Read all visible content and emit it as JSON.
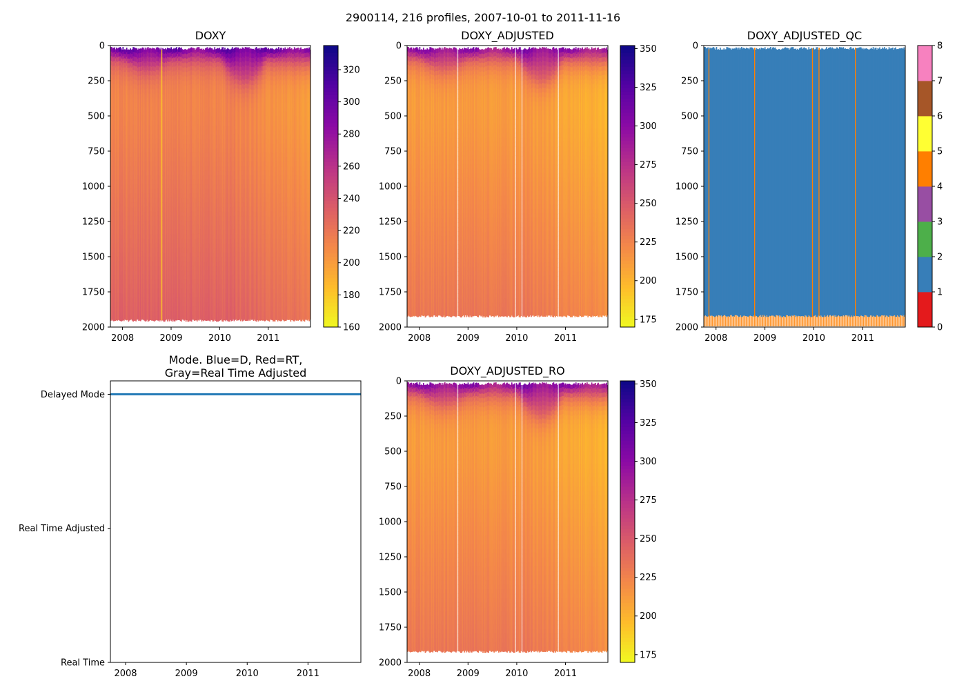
{
  "figure": {
    "title": "2900114, 216 profiles, 2007-10-01 to 2011-11-16"
  },
  "chart_data": [
    {
      "id": "doxy",
      "type": "heatmap",
      "title": "DOXY",
      "x_ticks": [
        "2008",
        "2009",
        "2010",
        "2011"
      ],
      "x_tick_years": [
        2008,
        2009,
        2010,
        2011
      ],
      "xlim": [
        2007.75,
        2011.87
      ],
      "ylim": [
        2000,
        0
      ],
      "y_ticks": [
        0,
        250,
        500,
        750,
        1000,
        1250,
        1500,
        1750,
        2000
      ],
      "y_tick_labels": [
        "0",
        "250",
        "500",
        "750",
        "1000",
        "1250",
        "1500",
        "1750",
        "2000"
      ],
      "colormap": "plasma_r",
      "clim": [
        160,
        335
      ],
      "colorbar_ticks": [
        160,
        180,
        200,
        220,
        240,
        260,
        280,
        300,
        320
      ],
      "colorbar_labels": [
        "160",
        "180",
        "200",
        "220",
        "240",
        "260",
        "280",
        "300",
        "320"
      ],
      "max_depth": 1960,
      "white_gaps": [],
      "anomaly_stripes": [
        2008.8
      ]
    },
    {
      "id": "doxy_adjusted",
      "type": "heatmap",
      "title": "DOXY_ADJUSTED",
      "x_ticks": [
        "2008",
        "2009",
        "2010",
        "2011"
      ],
      "x_tick_years": [
        2008,
        2009,
        2010,
        2011
      ],
      "xlim": [
        2007.75,
        2011.87
      ],
      "ylim": [
        2000,
        0
      ],
      "y_ticks": [
        0,
        250,
        500,
        750,
        1000,
        1250,
        1500,
        1750,
        2000
      ],
      "y_tick_labels": [
        "0",
        "250",
        "500",
        "750",
        "1000",
        "1250",
        "1500",
        "1750",
        "2000"
      ],
      "colormap": "plasma_r",
      "clim": [
        170,
        352
      ],
      "colorbar_ticks": [
        175,
        200,
        225,
        250,
        275,
        300,
        325,
        350
      ],
      "colorbar_labels": [
        "175",
        "200",
        "225",
        "250",
        "275",
        "300",
        "325",
        "350"
      ],
      "max_depth": 1930,
      "white_gaps": [
        2008.79,
        2009.97,
        2010.1,
        2010.85
      ]
    },
    {
      "id": "doxy_adjusted_qc",
      "type": "heatmap",
      "title": "DOXY_ADJUSTED_QC",
      "x_ticks": [
        "2008",
        "2009",
        "2010",
        "2011"
      ],
      "x_tick_years": [
        2008,
        2009,
        2010,
        2011
      ],
      "xlim": [
        2007.75,
        2011.87
      ],
      "ylim": [
        2000,
        0
      ],
      "y_ticks": [
        0,
        250,
        500,
        750,
        1000,
        1250,
        1500,
        1750,
        2000
      ],
      "y_tick_labels": [
        "0",
        "250",
        "500",
        "750",
        "1000",
        "1250",
        "1500",
        "1750",
        "2000"
      ],
      "colormap": "qc-categorical",
      "clim": [
        0,
        8
      ],
      "qc_categories": [
        {
          "flag": 0,
          "color": "#e41a1c"
        },
        {
          "flag": 1,
          "color": "#377eb8"
        },
        {
          "flag": 2,
          "color": "#4daf4a"
        },
        {
          "flag": 3,
          "color": "#984ea3"
        },
        {
          "flag": 4,
          "color": "#ff7f00"
        },
        {
          "flag": 5,
          "color": "#ffff33"
        },
        {
          "flag": 6,
          "color": "#a65628"
        },
        {
          "flag": 7,
          "color": "#f781bf"
        }
      ],
      "colorbar_ticks": [
        0,
        1,
        2,
        3,
        4,
        5,
        6,
        7,
        8
      ],
      "colorbar_labels": [
        "0",
        "1",
        "2",
        "3",
        "4",
        "5",
        "6",
        "7",
        "8"
      ],
      "dominant_flag": 1,
      "bottom_flag": 4,
      "orange_stripes": [
        2007.85,
        2008.79,
        2009.97,
        2010.1,
        2010.85
      ],
      "max_depth": 1930
    },
    {
      "id": "mode",
      "type": "line",
      "title": "Mode. Blue=D, Red=RT,\nGray=Real Time Adjusted",
      "title_lines": [
        "Mode. Blue=D, Red=RT,",
        "Gray=Real Time Adjusted"
      ],
      "x_ticks": [
        "2008",
        "2009",
        "2010",
        "2011"
      ],
      "x_tick_years": [
        2008,
        2009,
        2010,
        2011
      ],
      "xlim": [
        2007.75,
        2011.87
      ],
      "y_categories": [
        "Delayed Mode",
        "Real Time Adjusted",
        "Real Time"
      ],
      "y_values": [
        2,
        1,
        0
      ],
      "ylim": [
        0,
        2.1
      ],
      "series": [
        {
          "name": "Delayed Mode",
          "color": "#1f77b4",
          "y": 2,
          "x_range": [
            2007.75,
            2011.87
          ]
        }
      ]
    },
    {
      "id": "doxy_adjusted_ro",
      "type": "heatmap",
      "title": "DOXY_ADJUSTED_RO",
      "x_ticks": [
        "2008",
        "2009",
        "2010",
        "2011"
      ],
      "x_tick_years": [
        2008,
        2009,
        2010,
        2011
      ],
      "xlim": [
        2007.75,
        2011.87
      ],
      "ylim": [
        2000,
        0
      ],
      "y_ticks": [
        0,
        250,
        500,
        750,
        1000,
        1250,
        1500,
        1750,
        2000
      ],
      "y_tick_labels": [
        "0",
        "250",
        "500",
        "750",
        "1000",
        "1250",
        "1500",
        "1750",
        "2000"
      ],
      "colormap": "plasma_r",
      "clim": [
        170,
        352
      ],
      "colorbar_ticks": [
        175,
        200,
        225,
        250,
        275,
        300,
        325,
        350
      ],
      "colorbar_labels": [
        "175",
        "200",
        "225",
        "250",
        "275",
        "300",
        "325",
        "350"
      ],
      "max_depth": 1930,
      "white_gaps": [
        2008.79,
        2009.97,
        2010.1,
        2010.85
      ]
    }
  ]
}
